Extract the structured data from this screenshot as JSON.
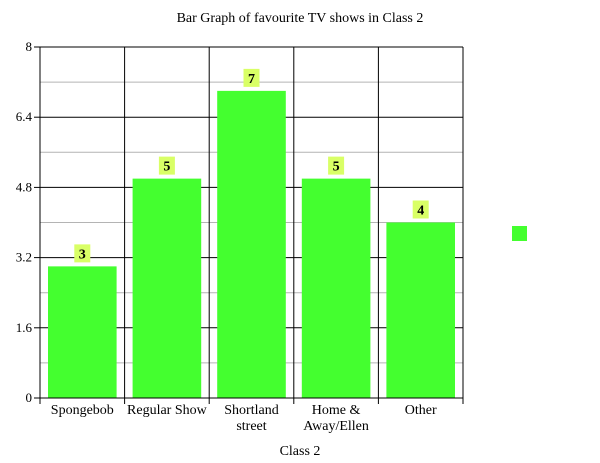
{
  "chart_data": {
    "type": "bar",
    "title": "Bar Graph of favourite TV shows in Class 2",
    "xlabel": "Class 2",
    "ylabel": "",
    "categories": [
      "Spongebob",
      "Regular Show",
      "Shortland street",
      "Home & Away/Ellen",
      "Other"
    ],
    "category_lines": [
      [
        "Spongebob"
      ],
      [
        "Regular Show"
      ],
      [
        "Shortland",
        "street"
      ],
      [
        "Home &",
        "Away/Ellen"
      ],
      [
        "Other"
      ]
    ],
    "values": [
      3,
      5,
      7,
      5,
      4
    ],
    "value_labels": [
      "3",
      "5",
      "7",
      "5",
      "4"
    ],
    "ylim": [
      0,
      8
    ],
    "yticks": [
      "0",
      "1.6",
      "3.2",
      "4.8",
      "6.4",
      "8"
    ],
    "grid": true,
    "legend": "right",
    "colors": {
      "bar": "#44ff2f",
      "label_bg": "#d9ff66",
      "grid": "#000000",
      "minor_grid": "#b4b4b4"
    }
  }
}
